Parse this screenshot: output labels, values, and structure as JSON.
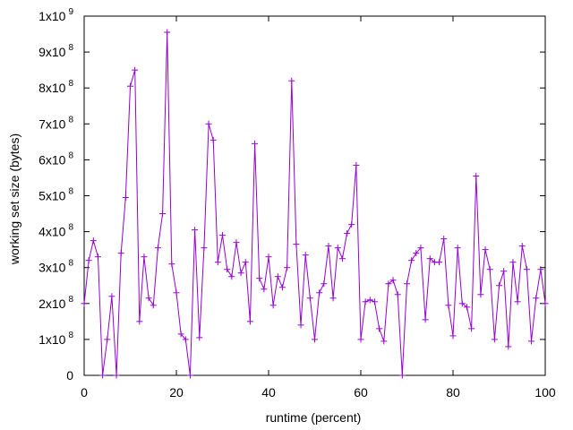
{
  "chart_data": {
    "type": "line",
    "title": "",
    "xlabel": "runtime (percent)",
    "ylabel": "working set size (bytes)",
    "xlim": [
      0,
      100
    ],
    "ylim": [
      0,
      1000000000
    ],
    "x_ticks": [
      0,
      20,
      40,
      60,
      80,
      100
    ],
    "y_ticks": [
      {
        "value": 0,
        "mantissa": "0",
        "exp": ""
      },
      {
        "value": 100000000,
        "mantissa": "1x10",
        "exp": "8"
      },
      {
        "value": 200000000,
        "mantissa": "2x10",
        "exp": "8"
      },
      {
        "value": 300000000,
        "mantissa": "3x10",
        "exp": "8"
      },
      {
        "value": 400000000,
        "mantissa": "4x10",
        "exp": "8"
      },
      {
        "value": 500000000,
        "mantissa": "5x10",
        "exp": "8"
      },
      {
        "value": 600000000,
        "mantissa": "6x10",
        "exp": "8"
      },
      {
        "value": 700000000,
        "mantissa": "7x10",
        "exp": "8"
      },
      {
        "value": 800000000,
        "mantissa": "8x10",
        "exp": "8"
      },
      {
        "value": 900000000,
        "mantissa": "9x10",
        "exp": "8"
      },
      {
        "value": 1000000000,
        "mantissa": "1x10",
        "exp": "9"
      }
    ],
    "grid": false,
    "legend": "none",
    "series_color": "#9400d3",
    "marker": "plus",
    "series": [
      {
        "x": [
          0,
          1,
          2,
          3,
          4,
          5,
          6,
          7,
          8,
          9,
          10,
          11,
          12,
          13,
          14,
          15,
          16,
          17,
          18,
          19,
          20,
          21,
          22,
          23,
          24,
          25,
          26,
          27,
          28,
          29,
          30,
          31,
          32,
          33,
          34,
          35,
          36,
          37,
          38,
          39,
          40,
          41,
          42,
          43,
          44,
          45,
          46,
          47,
          48,
          49,
          50,
          51,
          52,
          53,
          54,
          55,
          56,
          57,
          58,
          59,
          60,
          61,
          62,
          63,
          64,
          65,
          66,
          67,
          68,
          69,
          70,
          71,
          72,
          73,
          74,
          75,
          76,
          77,
          78,
          79,
          80,
          81,
          82,
          83,
          84,
          85,
          86,
          87,
          88,
          89,
          90,
          91,
          92,
          93,
          94,
          95,
          96,
          97,
          98,
          99,
          100
        ],
        "y": [
          200000000,
          320000000,
          375000000,
          330000000,
          0,
          100000000,
          220000000,
          0,
          340000000,
          495000000,
          805000000,
          850000000,
          150000000,
          330000000,
          215000000,
          195000000,
          355000000,
          450000000,
          955000000,
          310000000,
          230000000,
          115000000,
          100000000,
          0,
          405000000,
          105000000,
          355000000,
          700000000,
          655000000,
          315000000,
          390000000,
          295000000,
          275000000,
          370000000,
          285000000,
          315000000,
          150000000,
          645000000,
          270000000,
          240000000,
          330000000,
          195000000,
          275000000,
          245000000,
          300000000,
          820000000,
          365000000,
          140000000,
          335000000,
          215000000,
          100000000,
          230000000,
          255000000,
          360000000,
          215000000,
          355000000,
          325000000,
          395000000,
          420000000,
          585000000,
          100000000,
          205000000,
          210000000,
          205000000,
          130000000,
          95000000,
          255000000,
          265000000,
          225000000,
          0,
          255000000,
          320000000,
          340000000,
          355000000,
          155000000,
          325000000,
          315000000,
          315000000,
          380000000,
          195000000,
          110000000,
          355000000,
          200000000,
          190000000,
          130000000,
          555000000,
          225000000,
          350000000,
          295000000,
          100000000,
          250000000,
          290000000,
          80000000,
          315000000,
          205000000,
          360000000,
          295000000,
          95000000,
          215000000,
          295000000,
          200000000
        ]
      }
    ]
  }
}
